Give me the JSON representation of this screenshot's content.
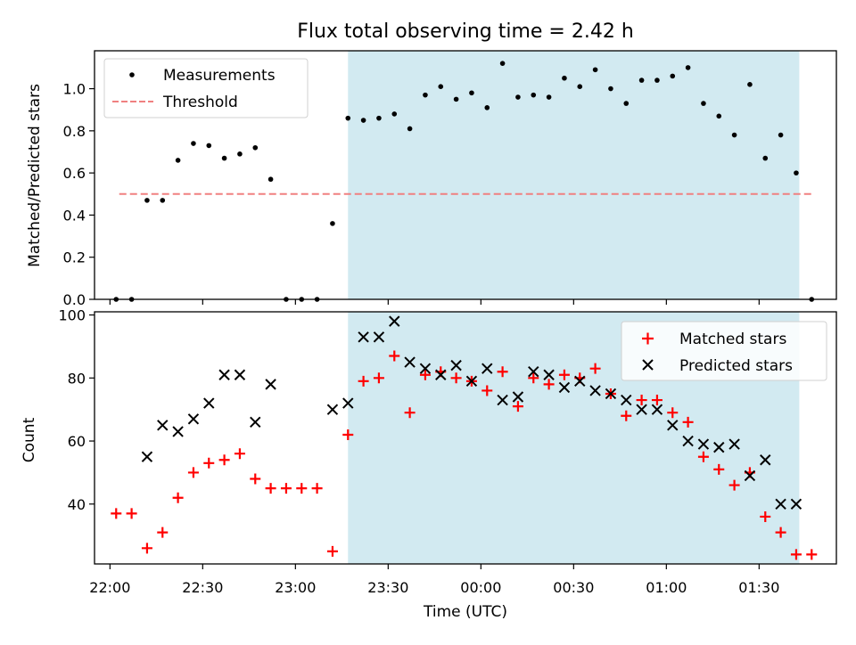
{
  "title": "Flux total observing time = 2.42 h",
  "colors": {
    "highlight": "#add8e6",
    "measurement": "#000000",
    "threshold": "#f08080",
    "matched": "#ff0000",
    "predicted": "#000000"
  },
  "chart_data": [
    {
      "type": "scatter",
      "ylabel": "Matched/Predicted stars",
      "xlabel": "",
      "ylim": [
        0,
        1.18
      ],
      "yticks": [
        "0.0",
        "0.2",
        "0.4",
        "0.6",
        "0.8",
        "1.0"
      ],
      "ytick_values": [
        0,
        0.2,
        0.4,
        0.6,
        0.8,
        1.0
      ],
      "highlight_span": {
        "start": "23:17",
        "end": "01:43"
      },
      "legend": {
        "position": "upper-left",
        "measurements": "Measurements",
        "threshold": "Threshold"
      },
      "threshold": {
        "value": 0.5,
        "from": "22:03",
        "to": "01:48"
      },
      "series": [
        {
          "name": "Measurements",
          "points": [
            [
              "22:02",
              0.0
            ],
            [
              "22:07",
              0.0
            ],
            [
              "22:12",
              0.47
            ],
            [
              "22:17",
              0.47
            ],
            [
              "22:22",
              0.66
            ],
            [
              "22:27",
              0.74
            ],
            [
              "22:32",
              0.73
            ],
            [
              "22:37",
              0.67
            ],
            [
              "22:42",
              0.69
            ],
            [
              "22:47",
              0.72
            ],
            [
              "22:52",
              0.57
            ],
            [
              "22:57",
              0.0
            ],
            [
              "23:02",
              0.0
            ],
            [
              "23:07",
              0.0
            ],
            [
              "23:12",
              0.36
            ],
            [
              "23:17",
              0.86
            ],
            [
              "23:22",
              0.85
            ],
            [
              "23:27",
              0.86
            ],
            [
              "23:32",
              0.88
            ],
            [
              "23:37",
              0.81
            ],
            [
              "23:42",
              0.97
            ],
            [
              "23:47",
              1.01
            ],
            [
              "23:52",
              0.95
            ],
            [
              "23:57",
              0.98
            ],
            [
              "00:02",
              0.91
            ],
            [
              "00:07",
              1.12
            ],
            [
              "00:12",
              0.96
            ],
            [
              "00:17",
              0.97
            ],
            [
              "00:22",
              0.96
            ],
            [
              "00:27",
              1.05
            ],
            [
              "00:32",
              1.01
            ],
            [
              "00:37",
              1.09
            ],
            [
              "00:42",
              1.0
            ],
            [
              "00:47",
              0.93
            ],
            [
              "00:52",
              1.04
            ],
            [
              "00:57",
              1.04
            ],
            [
              "01:02",
              1.06
            ],
            [
              "01:07",
              1.1
            ],
            [
              "01:12",
              0.93
            ],
            [
              "01:17",
              0.87
            ],
            [
              "01:22",
              0.78
            ],
            [
              "01:27",
              1.02
            ],
            [
              "01:32",
              0.67
            ],
            [
              "01:37",
              0.78
            ],
            [
              "01:42",
              0.6
            ],
            [
              "01:47",
              0.0
            ]
          ]
        }
      ]
    },
    {
      "type": "scatter",
      "ylabel": "Count",
      "xlabel": "Time (UTC)",
      "ylim": [
        21,
        101
      ],
      "yticks": [
        "40",
        "60",
        "80",
        "100"
      ],
      "ytick_values": [
        40,
        60,
        80,
        100
      ],
      "xlim": [
        "21:55",
        "01:55"
      ],
      "xticks": [
        "22:00",
        "22:30",
        "23:00",
        "23:30",
        "00:00",
        "00:30",
        "01:00",
        "01:30"
      ],
      "highlight_span": {
        "start": "23:17",
        "end": "01:43"
      },
      "legend": {
        "position": "upper-right",
        "matched": "Matched stars",
        "predicted": "Predicted stars"
      },
      "series": [
        {
          "name": "Matched stars",
          "points": [
            [
              "22:02",
              37
            ],
            [
              "22:07",
              37
            ],
            [
              "22:12",
              26
            ],
            [
              "22:17",
              31
            ],
            [
              "22:22",
              42
            ],
            [
              "22:27",
              50
            ],
            [
              "22:32",
              53
            ],
            [
              "22:37",
              54
            ],
            [
              "22:42",
              56
            ],
            [
              "22:47",
              48
            ],
            [
              "22:52",
              45
            ],
            [
              "22:57",
              45
            ],
            [
              "23:02",
              45
            ],
            [
              "23:07",
              45
            ],
            [
              "23:12",
              25
            ],
            [
              "23:17",
              62
            ],
            [
              "23:22",
              79
            ],
            [
              "23:27",
              80
            ],
            [
              "23:32",
              87
            ],
            [
              "23:37",
              69
            ],
            [
              "23:42",
              81
            ],
            [
              "23:47",
              82
            ],
            [
              "23:52",
              80
            ],
            [
              "23:57",
              79
            ],
            [
              "00:02",
              76
            ],
            [
              "00:07",
              82
            ],
            [
              "00:12",
              71
            ],
            [
              "00:17",
              80
            ],
            [
              "00:22",
              78
            ],
            [
              "00:27",
              81
            ],
            [
              "00:32",
              80
            ],
            [
              "00:37",
              83
            ],
            [
              "00:42",
              75
            ],
            [
              "00:47",
              68
            ],
            [
              "00:52",
              73
            ],
            [
              "00:57",
              73
            ],
            [
              "01:02",
              69
            ],
            [
              "01:07",
              66
            ],
            [
              "01:12",
              55
            ],
            [
              "01:17",
              51
            ],
            [
              "01:22",
              46
            ],
            [
              "01:27",
              50
            ],
            [
              "01:32",
              36
            ],
            [
              "01:37",
              31
            ],
            [
              "01:42",
              24
            ],
            [
              "01:47",
              24
            ]
          ]
        },
        {
          "name": "Predicted stars",
          "points": [
            [
              "22:12",
              55
            ],
            [
              "22:17",
              65
            ],
            [
              "22:22",
              63
            ],
            [
              "22:27",
              67
            ],
            [
              "22:32",
              72
            ],
            [
              "22:37",
              81
            ],
            [
              "22:42",
              81
            ],
            [
              "22:47",
              66
            ],
            [
              "22:52",
              78
            ],
            [
              "23:12",
              70
            ],
            [
              "23:17",
              72
            ],
            [
              "23:22",
              93
            ],
            [
              "23:27",
              93
            ],
            [
              "23:32",
              98
            ],
            [
              "23:37",
              85
            ],
            [
              "23:42",
              83
            ],
            [
              "23:47",
              81
            ],
            [
              "23:52",
              84
            ],
            [
              "23:57",
              79
            ],
            [
              "00:02",
              83
            ],
            [
              "00:07",
              73
            ],
            [
              "00:12",
              74
            ],
            [
              "00:17",
              82
            ],
            [
              "00:22",
              81
            ],
            [
              "00:27",
              77
            ],
            [
              "00:32",
              79
            ],
            [
              "00:37",
              76
            ],
            [
              "00:42",
              75
            ],
            [
              "00:47",
              73
            ],
            [
              "00:52",
              70
            ],
            [
              "00:57",
              70
            ],
            [
              "01:02",
              65
            ],
            [
              "01:07",
              60
            ],
            [
              "01:12",
              59
            ],
            [
              "01:17",
              58
            ],
            [
              "01:22",
              59
            ],
            [
              "01:27",
              49
            ],
            [
              "01:32",
              54
            ],
            [
              "01:37",
              40
            ],
            [
              "01:42",
              40
            ]
          ]
        }
      ]
    }
  ]
}
